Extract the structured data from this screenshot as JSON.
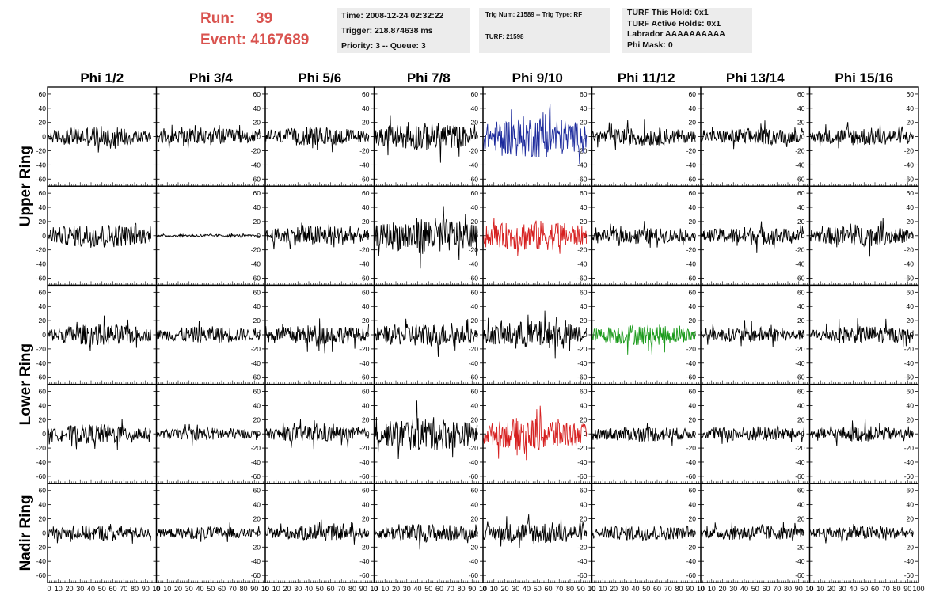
{
  "header": {
    "run_label": "Run:",
    "run_value": "39",
    "event_label": "Event:",
    "event_value": "4167689",
    "run_color": "#d9534f",
    "time": "Time: 2008-12-24 02:32:22",
    "trigger": "Trigger: 218.874638 ms",
    "priority": "Priority: 3 -- Queue: 3",
    "trig_num": "Trig Num: 21589 -- Trig Type: RF",
    "turf": "TURF: 21598",
    "turf_this_hold": "TURF This Hold: 0x1",
    "turf_active_holds": "TURF Active Holds: 0x1",
    "labrador": "Labrador AAAAAAAAAA",
    "phi_mask": "Phi Mask: 0"
  },
  "chart_data": {
    "type": "line",
    "columns": [
      "Phi 1/2",
      "Phi 3/4",
      "Phi 5/6",
      "Phi 7/8",
      "Phi 9/10",
      "Phi 11/12",
      "Phi 13/14",
      "Phi 15/16"
    ],
    "ring_labels": [
      {
        "label": "Upper Ring",
        "rows": [
          0,
          1
        ]
      },
      {
        "label": "Lower Ring",
        "rows": [
          2,
          3
        ]
      },
      {
        "label": "Nadir Ring",
        "rows": [
          4,
          4
        ]
      }
    ],
    "rows": 5,
    "xlim": [
      0,
      100
    ],
    "ylim": [
      -70,
      70
    ],
    "y_ticks": [
      -60,
      -40,
      -20,
      0,
      20,
      40,
      60
    ],
    "x_ticks": [
      0,
      10,
      20,
      30,
      40,
      50,
      60,
      70,
      80,
      90,
      100
    ],
    "x_tick_labels_per_column": [
      "0",
      "10",
      "20",
      "30",
      "40",
      "50",
      "60",
      "70",
      "80",
      "90",
      "10"
    ],
    "last_x_tick_label": "100",
    "trace_x_range": [
      0,
      95
    ],
    "trace_points": 180,
    "default_color": "#000000",
    "colored_traces": [
      {
        "row": 0,
        "col": 4,
        "color": "#1c2a9c"
      },
      {
        "row": 1,
        "col": 4,
        "color": "#d62020"
      },
      {
        "row": 2,
        "col": 5,
        "color": "#1a9a1a"
      },
      {
        "row": 3,
        "col": 4,
        "color": "#d62020"
      }
    ],
    "trace_amplitudes": [
      [
        15,
        12,
        13,
        20,
        30,
        13,
        12,
        13
      ],
      [
        17,
        2,
        15,
        26,
        22,
        11,
        13,
        15
      ],
      [
        15,
        12,
        14,
        17,
        20,
        15,
        11,
        13
      ],
      [
        14,
        9,
        12,
        24,
        24,
        11,
        11,
        11
      ],
      [
        11,
        9,
        11,
        13,
        16,
        11,
        11,
        10
      ]
    ]
  }
}
